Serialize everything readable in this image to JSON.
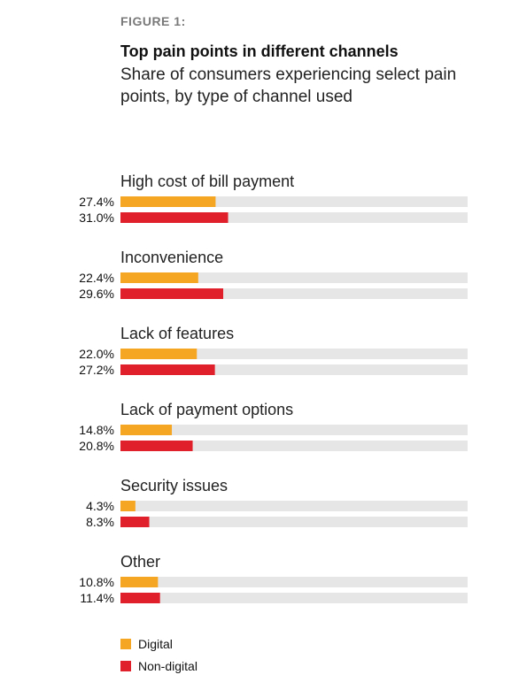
{
  "figure_label": "FIGURE 1:",
  "title": "Top pain points in different channels",
  "subtitle": "Share of consumers experiencing select pain points, by type of channel used",
  "colors": {
    "digital": "#f5a623",
    "non_digital": "#e0202a",
    "track": "#e6e6e6"
  },
  "chart_data": {
    "type": "bar",
    "orientation": "horizontal",
    "categories": [
      "High cost of bill payment",
      "Inconvenience",
      "Lack of features",
      "Lack of payment options",
      "Security issues",
      "Other"
    ],
    "series": [
      {
        "name": "Digital",
        "values": [
          27.4,
          22.4,
          22.0,
          14.8,
          4.3,
          10.8
        ],
        "labels": [
          "27.4%",
          "22.4%",
          "22.0%",
          "14.8%",
          "4.3%",
          "10.8%"
        ]
      },
      {
        "name": "Non-digital",
        "values": [
          31.0,
          29.6,
          27.2,
          20.8,
          8.3,
          11.4
        ],
        "labels": [
          "31.0%",
          "29.6%",
          "27.2%",
          "20.8%",
          "8.3%",
          "11.4%"
        ]
      }
    ],
    "xlim": [
      0,
      100
    ],
    "legend_position": "bottom-left"
  }
}
